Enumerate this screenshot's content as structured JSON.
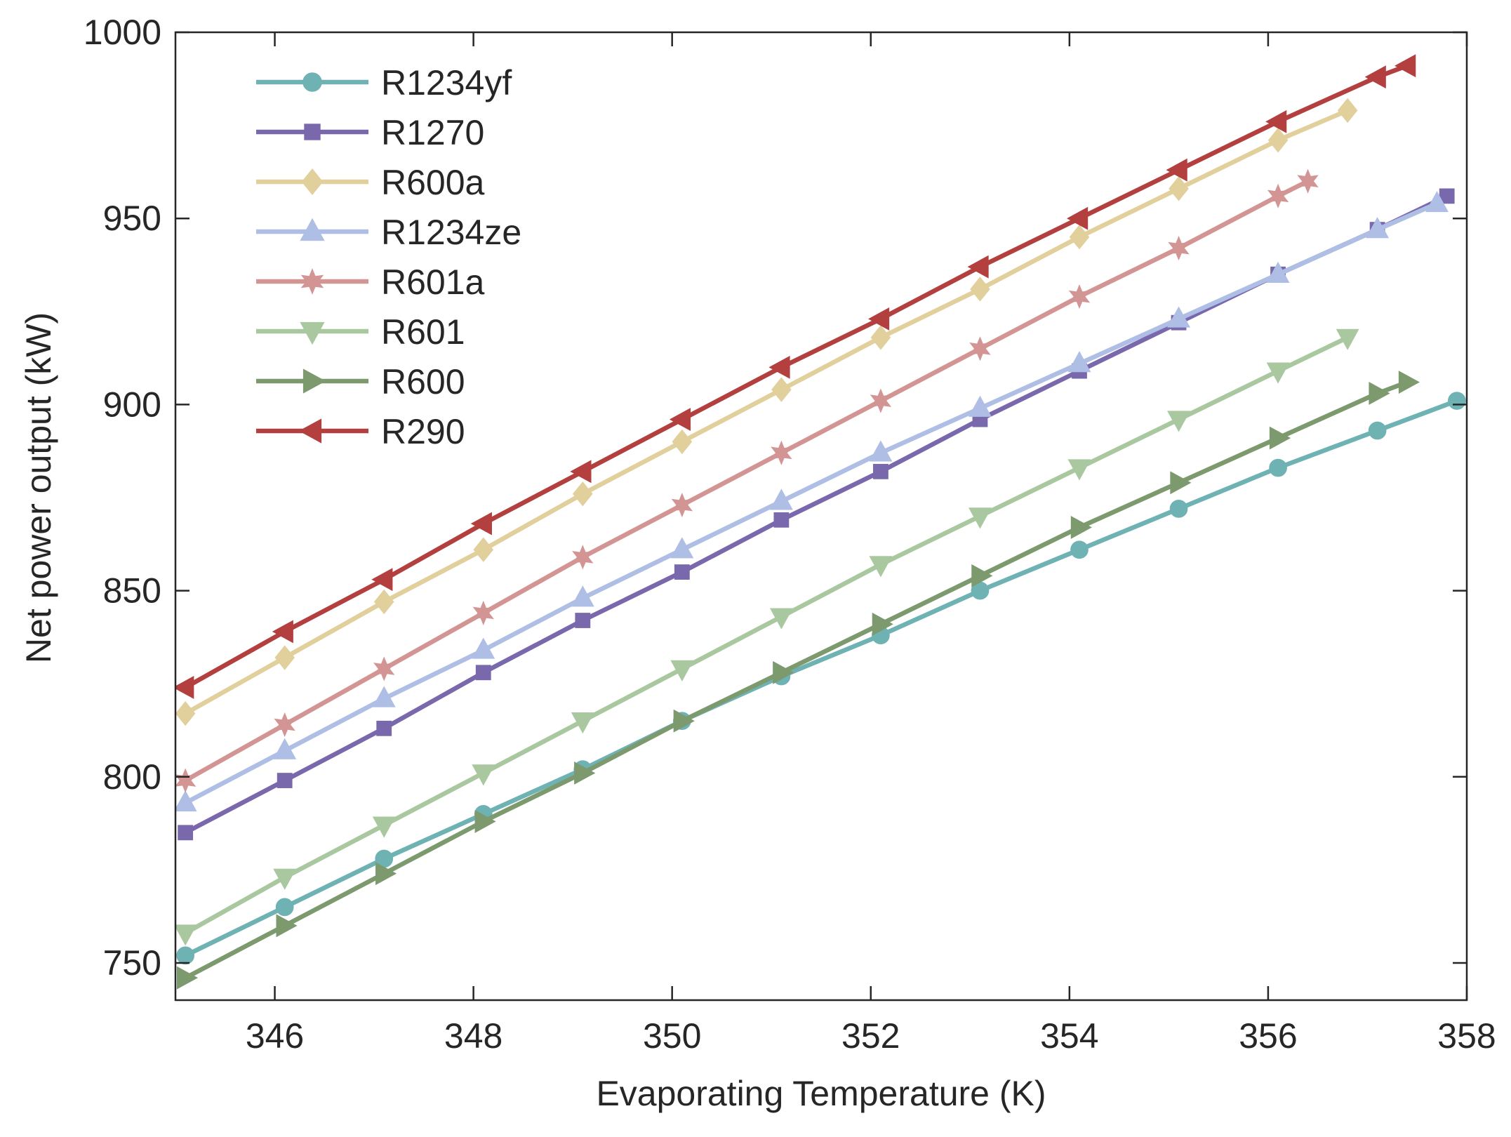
{
  "chart_data": {
    "type": "line",
    "title": "",
    "xlabel": "Evaporating Temperature (K)",
    "ylabel": "Net power output (kW)",
    "xlim": [
      345,
      358
    ],
    "ylim": [
      740,
      1000
    ],
    "xticks": [
      346,
      348,
      350,
      352,
      354,
      356,
      358
    ],
    "yticks": [
      750,
      800,
      850,
      900,
      950,
      1000
    ],
    "grid": false,
    "legend_position": "top-left",
    "series": [
      {
        "name": "R1234yf",
        "color": "#6fb2b4",
        "marker": "circle",
        "x": [
          345.1,
          346.1,
          347.1,
          348.1,
          349.1,
          350.1,
          351.1,
          352.1,
          353.1,
          354.1,
          355.1,
          356.1,
          357.1,
          357.9
        ],
        "y": [
          752,
          765,
          778,
          790,
          802,
          815,
          827,
          838,
          850,
          861,
          872,
          883,
          893,
          901
        ]
      },
      {
        "name": "R1270",
        "color": "#7a68ac",
        "marker": "square",
        "x": [
          345.1,
          346.1,
          347.1,
          348.1,
          349.1,
          350.1,
          351.1,
          352.1,
          353.1,
          354.1,
          355.1,
          356.1,
          357.1,
          357.8
        ],
        "y": [
          785,
          799,
          813,
          828,
          842,
          855,
          869,
          882,
          896,
          909,
          922,
          935,
          947,
          956
        ]
      },
      {
        "name": "R600a",
        "color": "#e1cf9c",
        "marker": "diamond",
        "x": [
          345.1,
          346.1,
          347.1,
          348.1,
          349.1,
          350.1,
          351.1,
          352.1,
          353.1,
          354.1,
          355.1,
          356.1,
          356.8
        ],
        "y": [
          817,
          832,
          847,
          861,
          876,
          890,
          904,
          918,
          931,
          945,
          958,
          971,
          979
        ]
      },
      {
        "name": "R1234ze",
        "color": "#aebee4",
        "marker": "triangle-up",
        "x": [
          345.1,
          346.1,
          347.1,
          348.1,
          349.1,
          350.1,
          351.1,
          352.1,
          353.1,
          354.1,
          355.1,
          356.1,
          357.1,
          357.7
        ],
        "y": [
          793,
          807,
          821,
          834,
          848,
          861,
          874,
          887,
          899,
          911,
          923,
          935,
          947,
          954
        ]
      },
      {
        "name": "R601a",
        "color": "#d39594",
        "marker": "star",
        "x": [
          345.1,
          346.1,
          347.1,
          348.1,
          349.1,
          350.1,
          351.1,
          352.1,
          353.1,
          354.1,
          355.1,
          356.1,
          356.4
        ],
        "y": [
          799,
          814,
          829,
          844,
          859,
          873,
          887,
          901,
          915,
          929,
          942,
          956,
          960
        ]
      },
      {
        "name": "R601",
        "color": "#a9c8a0",
        "marker": "triangle-down",
        "x": [
          345.1,
          346.1,
          347.1,
          348.1,
          349.1,
          350.1,
          351.1,
          352.1,
          353.1,
          354.1,
          355.1,
          356.1,
          356.8
        ],
        "y": [
          758,
          773,
          787,
          801,
          815,
          829,
          843,
          857,
          870,
          883,
          896,
          909,
          918
        ]
      },
      {
        "name": "R600",
        "color": "#7c9a6e",
        "marker": "triangle-right",
        "x": [
          345.1,
          346.1,
          347.1,
          348.1,
          349.1,
          350.1,
          351.1,
          352.1,
          353.1,
          354.1,
          355.1,
          356.1,
          357.1,
          357.4
        ],
        "y": [
          746,
          760,
          774,
          788,
          801,
          815,
          828,
          841,
          854,
          867,
          879,
          891,
          903,
          906
        ]
      },
      {
        "name": "R290",
        "color": "#b3403f",
        "marker": "triangle-left",
        "x": [
          345.1,
          346.1,
          347.1,
          348.1,
          349.1,
          350.1,
          351.1,
          352.1,
          353.1,
          354.1,
          355.1,
          356.1,
          357.1,
          357.4
        ],
        "y": [
          824,
          839,
          853,
          868,
          882,
          896,
          910,
          923,
          937,
          950,
          963,
          976,
          988,
          991
        ]
      }
    ]
  }
}
